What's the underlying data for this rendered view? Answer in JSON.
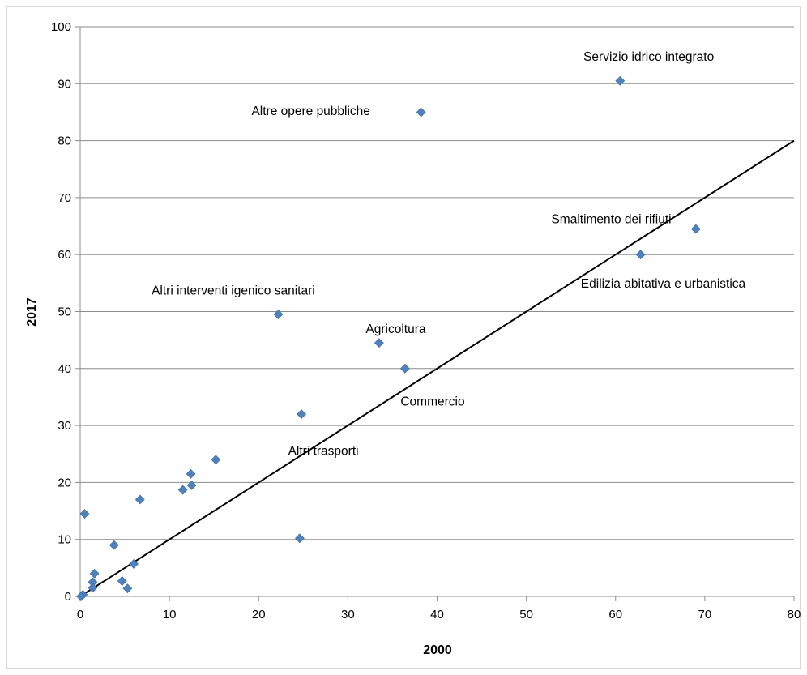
{
  "chart_data": {
    "type": "scatter",
    "title": "",
    "xlabel": "2000",
    "ylabel": "2017",
    "xlim": [
      0,
      80
    ],
    "ylim": [
      0,
      100
    ],
    "xticks": [
      0,
      10,
      20,
      30,
      40,
      50,
      60,
      70,
      80
    ],
    "yticks": [
      0,
      10,
      20,
      30,
      40,
      50,
      60,
      70,
      80,
      90,
      100
    ],
    "grid": "horizontal",
    "legend": "none",
    "point_color": "#4F81BD",
    "points": [
      {
        "x": 60.5,
        "y": 90.5
      },
      {
        "x": 38.2,
        "y": 85.0
      },
      {
        "x": 69.0,
        "y": 64.5
      },
      {
        "x": 62.8,
        "y": 60.0
      },
      {
        "x": 22.2,
        "y": 49.5
      },
      {
        "x": 33.5,
        "y": 44.5
      },
      {
        "x": 36.4,
        "y": 40.0
      },
      {
        "x": 24.8,
        "y": 32.0
      },
      {
        "x": 15.2,
        "y": 24.0
      },
      {
        "x": 12.4,
        "y": 21.5
      },
      {
        "x": 12.5,
        "y": 19.5
      },
      {
        "x": 11.5,
        "y": 18.7
      },
      {
        "x": 6.7,
        "y": 17.0
      },
      {
        "x": 0.5,
        "y": 14.5
      },
      {
        "x": 24.6,
        "y": 10.2
      },
      {
        "x": 3.8,
        "y": 9.0
      },
      {
        "x": 6.0,
        "y": 5.7
      },
      {
        "x": 1.6,
        "y": 4.0
      },
      {
        "x": 4.7,
        "y": 2.7
      },
      {
        "x": 1.4,
        "y": 2.5
      },
      {
        "x": 1.4,
        "y": 1.5
      },
      {
        "x": 5.3,
        "y": 1.4
      },
      {
        "x": 0.3,
        "y": 0.3
      },
      {
        "x": 0.1,
        "y": 0.0
      }
    ],
    "reference_line": {
      "x": [
        0,
        80
      ],
      "y": [
        0,
        80
      ],
      "color": "#000000"
    },
    "annotations": [
      {
        "text": "Servizio idrico integrato",
        "x": 56.4,
        "y": 94.0
      },
      {
        "text": "Altre opere pubbliche",
        "x": 19.2,
        "y": 84.5
      },
      {
        "text": "Smaltimento dei rifiuti",
        "x": 52.8,
        "y": 65.5
      },
      {
        "text": "Edilizia abitativa e urbanistica",
        "x": 56.1,
        "y": 54.2
      },
      {
        "text": "Altri interventi igenico sanitari",
        "x": 8.0,
        "y": 53.0
      },
      {
        "text": "Agricoltura",
        "x": 32.0,
        "y": 46.2
      },
      {
        "text": "Commercio",
        "x": 35.9,
        "y": 33.5
      },
      {
        "text": "Altri trasporti",
        "x": 23.3,
        "y": 24.8
      }
    ]
  }
}
